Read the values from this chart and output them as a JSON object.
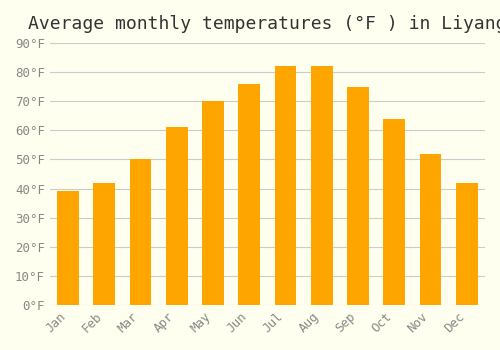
{
  "title": "Average monthly temperatures (°F ) in Liyang",
  "months": [
    "Jan",
    "Feb",
    "Mar",
    "Apr",
    "May",
    "Jun",
    "Jul",
    "Aug",
    "Sep",
    "Oct",
    "Nov",
    "Dec"
  ],
  "values": [
    39,
    42,
    50,
    61,
    70,
    76,
    82,
    82,
    75,
    64,
    52,
    42
  ],
  "bar_color_top": "#FFA500",
  "bar_color_bottom": "#FFD580",
  "bar_edge_color": "none",
  "background_color": "#FFFFF0",
  "grid_color": "#CCCCCC",
  "ylim": [
    0,
    90
  ],
  "yticks": [
    0,
    10,
    20,
    30,
    40,
    50,
    60,
    70,
    80,
    90
  ],
  "title_fontsize": 13,
  "tick_fontsize": 9,
  "font_family": "monospace"
}
